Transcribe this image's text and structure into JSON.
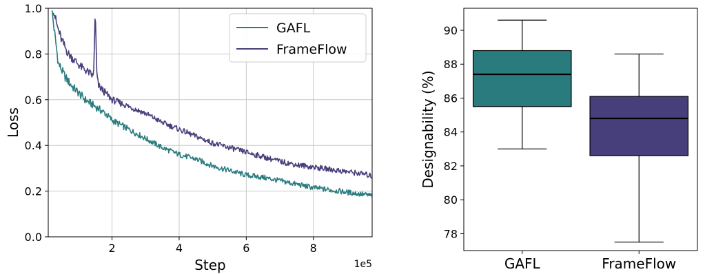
{
  "colors": {
    "gafl": "#2a7b7e",
    "frameflow": "#463f7b",
    "grid": "#c8c8c8"
  },
  "chart_data": [
    {
      "type": "line",
      "xlabel": "Step",
      "ylabel": "Loss",
      "x_offset_label": "1e5",
      "xlim": [
        0.1,
        9.75
      ],
      "ylim": [
        0.0,
        1.0
      ],
      "x_ticks": [
        2,
        4,
        6,
        8
      ],
      "x_tick_labels": [
        "2",
        "4",
        "6",
        "8"
      ],
      "y_ticks": [
        0.0,
        0.2,
        0.4,
        0.6,
        0.8,
        1.0
      ],
      "y_tick_labels": [
        "0.0",
        "0.2",
        "0.4",
        "0.6",
        "0.8",
        "1.0"
      ],
      "grid": true,
      "legend_position": "top-right",
      "series": [
        {
          "name": "GAFL",
          "color": "#2a7b7e",
          "x": [
            0.2,
            0.3,
            0.4,
            0.6,
            0.8,
            1.0,
            1.2,
            1.5,
            1.8,
            2.0,
            2.5,
            3.0,
            3.5,
            4.0,
            4.5,
            5.0,
            5.5,
            6.0,
            6.5,
            7.0,
            7.5,
            8.0,
            8.5,
            9.0,
            9.5,
            9.75
          ],
          "y": [
            1.0,
            0.88,
            0.76,
            0.7,
            0.66,
            0.63,
            0.6,
            0.57,
            0.54,
            0.51,
            0.47,
            0.43,
            0.39,
            0.36,
            0.34,
            0.31,
            0.29,
            0.27,
            0.26,
            0.245,
            0.23,
            0.215,
            0.205,
            0.195,
            0.185,
            0.18
          ]
        },
        {
          "name": "FrameFlow",
          "color": "#463f7b",
          "x": [
            0.25,
            0.35,
            0.5,
            0.7,
            0.9,
            1.1,
            1.3,
            1.45,
            1.5,
            1.55,
            1.6,
            1.8,
            2.0,
            2.5,
            3.0,
            3.5,
            4.0,
            4.5,
            5.0,
            5.5,
            6.0,
            6.5,
            7.0,
            7.5,
            8.0,
            8.5,
            9.0,
            9.5,
            9.75
          ],
          "y": [
            1.0,
            0.93,
            0.86,
            0.8,
            0.77,
            0.74,
            0.72,
            0.7,
            0.99,
            0.7,
            0.66,
            0.63,
            0.6,
            0.57,
            0.54,
            0.5,
            0.47,
            0.44,
            0.41,
            0.39,
            0.37,
            0.35,
            0.33,
            0.315,
            0.305,
            0.295,
            0.285,
            0.275,
            0.265
          ]
        }
      ]
    },
    {
      "type": "box",
      "ylabel": "Designability (%)",
      "ylim": [
        77.0,
        91.3
      ],
      "y_ticks": [
        78,
        80,
        82,
        84,
        86,
        88,
        90
      ],
      "y_tick_labels": [
        "78",
        "80",
        "82",
        "84",
        "86",
        "88",
        "90"
      ],
      "grid": false,
      "categories": [
        "GAFL",
        "FrameFlow"
      ],
      "boxes": [
        {
          "category": "GAFL",
          "color": "#2a7b7e",
          "whisker_low": 83.0,
          "q1": 85.5,
          "median": 87.4,
          "q3": 88.8,
          "whisker_high": 90.6
        },
        {
          "category": "FrameFlow",
          "color": "#463f7b",
          "whisker_low": 77.5,
          "q1": 82.6,
          "median": 84.8,
          "q3": 86.1,
          "whisker_high": 88.6
        }
      ]
    }
  ]
}
